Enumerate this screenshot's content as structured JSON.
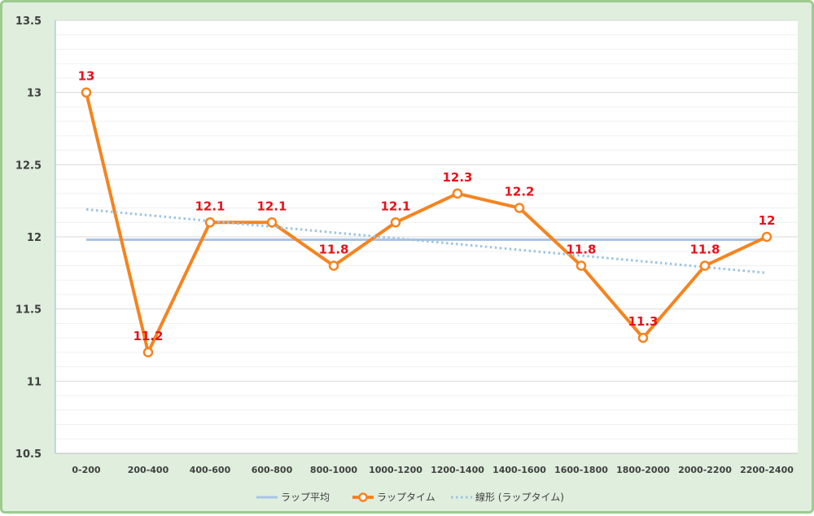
{
  "chart_data": {
    "type": "line",
    "categories": [
      "0-200",
      "200-400",
      "400-600",
      "600-800",
      "800-1000",
      "1000-1200",
      "1200-1400",
      "1400-1600",
      "1600-1800",
      "1800-2000",
      "2000-2200",
      "2200-2400"
    ],
    "series": [
      {
        "name": "ラップ平均",
        "values": [
          11.98,
          11.98,
          11.98,
          11.98,
          11.98,
          11.98,
          11.98,
          11.98,
          11.98,
          11.98,
          11.98,
          11.98
        ],
        "color": "#a9c4e4",
        "style": "solid"
      },
      {
        "name": "ラップタイム",
        "values": [
          13,
          11.2,
          12.1,
          12.1,
          11.8,
          12.1,
          12.3,
          12.2,
          11.8,
          11.3,
          11.8,
          12
        ],
        "color": "#f5841f",
        "style": "solid-markers"
      },
      {
        "name": "線形 (ラップタイム)",
        "values": [
          12.19,
          12.15,
          12.11,
          12.07,
          12.03,
          11.99,
          11.95,
          11.91,
          11.87,
          11.83,
          11.79,
          11.75
        ],
        "color": "#9ec4e2",
        "style": "dotted"
      }
    ],
    "data_labels": [
      "13",
      "11.2",
      "12.1",
      "12.1",
      "11.8",
      "12.1",
      "12.3",
      "12.2",
      "11.8",
      "11.3",
      "11.8",
      "12"
    ],
    "y_ticks": [
      "10.5",
      "11",
      "11.5",
      "12",
      "12.5",
      "13",
      "13.5"
    ],
    "ylim": [
      10.5,
      13.5
    ],
    "grid": true,
    "legend": "bottom",
    "xlabel": "",
    "ylabel": "",
    "title": ""
  }
}
